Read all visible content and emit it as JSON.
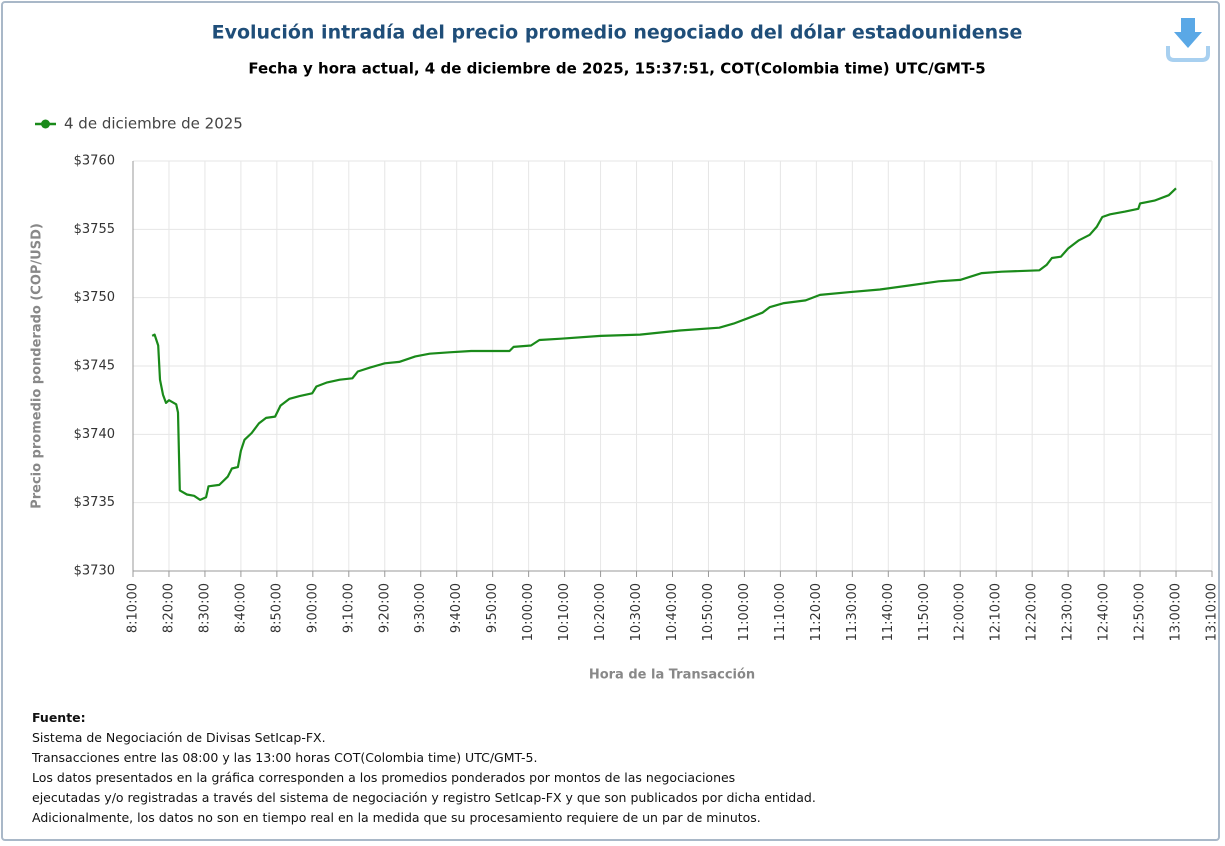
{
  "chart_data": {
    "type": "line",
    "title": "Evolución intradía del precio promedio negociado del dólar estadounidense",
    "subtitle": "Fecha y hora actual, 4 de diciembre de 2025, 15:37:51, COT(Colombia time) UTC/GMT-5",
    "x_label": "Hora de la Transacción",
    "y_label": "Precio promedio ponderado (COP/USD)",
    "xlim": [
      "8:10:00",
      "13:10:00"
    ],
    "xticks": [
      "8:10:00",
      "8:20:00",
      "8:30:00",
      "8:40:00",
      "8:50:00",
      "9:00:00",
      "9:10:00",
      "9:20:00",
      "9:30:00",
      "9:40:00",
      "9:50:00",
      "10:00:00",
      "10:10:00",
      "10:20:00",
      "10:30:00",
      "10:40:00",
      "10:50:00",
      "11:00:00",
      "11:10:00",
      "11:20:00",
      "11:30:00",
      "11:40:00",
      "11:50:00",
      "12:00:00",
      "12:10:00",
      "12:20:00",
      "12:30:00",
      "12:40:00",
      "12:50:00",
      "13:00:00",
      "13:10:00"
    ],
    "ylim": [
      3730,
      3760
    ],
    "yticks": [
      {
        "value": 3730,
        "label": "$3730"
      },
      {
        "value": 3735,
        "label": "$3735"
      },
      {
        "value": 3740,
        "label": "$3740"
      },
      {
        "value": 3745,
        "label": "$3745"
      },
      {
        "value": 3750,
        "label": "$3750"
      },
      {
        "value": 3755,
        "label": "$3755"
      },
      {
        "value": 3760,
        "label": "$3760"
      }
    ],
    "grid": true,
    "x": [
      "8:15:20",
      "8:16:00",
      "8:17:00",
      "8:17:30",
      "8:18:20",
      "8:19:10",
      "8:20:00",
      "8:22:00",
      "8:22:30",
      "8:23:00",
      "8:25:00",
      "8:27:00",
      "8:28:40",
      "8:30:20",
      "8:31:00",
      "8:34:00",
      "8:36:20",
      "8:37:30",
      "8:39:10",
      "8:40:00",
      "8:41:00",
      "8:43:00",
      "8:45:00",
      "8:47:00",
      "8:49:30",
      "8:51:00",
      "8:53:30",
      "8:56:20",
      "8:59:50",
      "9:01:00",
      "9:04:00",
      "9:07:30",
      "9:11:00",
      "9:12:30",
      "9:16:00",
      "9:20:00",
      "9:24:00",
      "9:28:30",
      "9:32:30",
      "9:38:00",
      "9:44:00",
      "9:49:00",
      "9:54:40",
      "9:55:50",
      "10:00:40",
      "10:03:00",
      "10:09:00",
      "10:20:00",
      "10:31:00",
      "10:42:00",
      "10:53:00",
      "10:57:00",
      "11:01:00",
      "11:05:00",
      "11:07:00",
      "11:11:00",
      "11:17:00",
      "11:21:00",
      "11:29:00",
      "11:37:40",
      "11:46:00",
      "11:54:00",
      "12:00:00",
      "12:06:00",
      "12:11:30",
      "12:22:00",
      "12:24:00",
      "12:25:30",
      "12:28:00",
      "12:30:00",
      "12:33:00",
      "12:36:00",
      "12:38:00",
      "12:39:30",
      "12:41:40",
      "12:45:50",
      "12:49:30",
      "12:50:00",
      "12:54:00",
      "12:58:00",
      "13:00:00"
    ],
    "series": [
      {
        "name": "4 de diciembre de 2025",
        "color": "#1a8a1a",
        "values": [
          3747.2,
          3747.3,
          3746.5,
          3744.0,
          3742.9,
          3742.3,
          3742.5,
          3742.2,
          3741.6,
          3735.9,
          3735.6,
          3735.5,
          3735.2,
          3735.4,
          3736.2,
          3736.3,
          3736.9,
          3737.5,
          3737.6,
          3738.8,
          3739.6,
          3740.1,
          3740.8,
          3741.2,
          3741.3,
          3742.1,
          3742.6,
          3742.8,
          3743.0,
          3743.5,
          3743.8,
          3744.0,
          3744.1,
          3744.6,
          3744.9,
          3745.2,
          3745.3,
          3745.7,
          3745.9,
          3746.0,
          3746.1,
          3746.1,
          3746.1,
          3746.4,
          3746.5,
          3746.9,
          3747.0,
          3747.2,
          3747.3,
          3747.6,
          3747.8,
          3748.1,
          3748.5,
          3748.9,
          3749.3,
          3749.6,
          3749.8,
          3750.2,
          3750.4,
          3750.6,
          3750.9,
          3751.2,
          3751.3,
          3751.8,
          3751.9,
          3752.0,
          3752.4,
          3752.9,
          3753.0,
          3753.6,
          3754.2,
          3754.6,
          3755.2,
          3755.9,
          3756.1,
          3756.3,
          3756.5,
          3756.9,
          3757.1,
          3757.5,
          3758.0
        ]
      }
    ]
  },
  "footer": {
    "heading": "Fuente:",
    "lines": [
      "Sistema de Negociación de Divisas SetIcap-FX.",
      "Transacciones entre las 08:00 y las 13:00 horas COT(Colombia time) UTC/GMT-5.",
      "Los datos presentados en la gráfica corresponden a los promedios ponderados por montos de las negociaciones",
      "ejecutadas y/o registradas a través del sistema de negociación y registro SetIcap-FX y que son publicados por dicha entidad.",
      "Adicionalmente, los datos no son en tiempo real en la medida que su procesamiento requiere de un par de minutos."
    ]
  }
}
